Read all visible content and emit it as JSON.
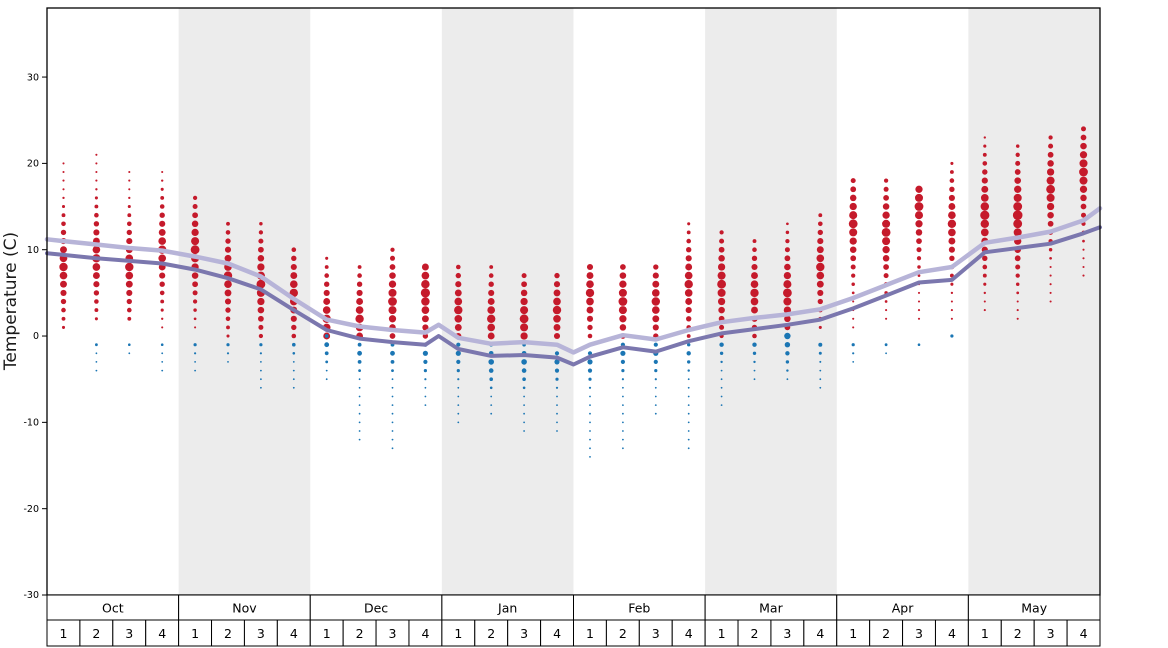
{
  "chart_data": {
    "type": "scatter",
    "title": "",
    "xlabel": "",
    "ylabel": "Temperature (C)",
    "ylim": [
      -30,
      38
    ],
    "yticks": [
      30,
      20,
      10,
      0,
      -10,
      -20,
      -30
    ],
    "grid": false,
    "legend": "none",
    "months": [
      "Oct",
      "Nov",
      "Dec",
      "Jan",
      "Feb",
      "Mar",
      "Apr",
      "May"
    ],
    "week_labels": [
      "1",
      "2",
      "3",
      "4"
    ],
    "shaded_month_indices": [
      1,
      3,
      5,
      7
    ],
    "colors": {
      "max_dots": "#c51a2b",
      "min_dots": "#1b76b4",
      "avg_max_line": "#b7b4d8",
      "avg_min_line": "#7b77ae",
      "band": "#ececec",
      "axis": "#000000",
      "cell_fill": "#ffffff"
    },
    "series": [
      {
        "name": "average-max-temperature",
        "color": "#b7b4d8",
        "width": 4.5,
        "points": [
          [
            -0.5,
            11.2
          ],
          [
            0,
            11.0
          ],
          [
            1,
            10.6
          ],
          [
            2,
            10.2
          ],
          [
            3,
            9.9
          ],
          [
            4,
            9.2
          ],
          [
            5,
            8.4
          ],
          [
            6,
            6.9
          ],
          [
            7,
            4.3
          ],
          [
            8,
            1.9
          ],
          [
            9,
            1.1
          ],
          [
            10,
            0.7
          ],
          [
            11,
            0.4
          ],
          [
            11.4,
            1.3
          ],
          [
            12,
            -0.2
          ],
          [
            13,
            -0.9
          ],
          [
            14,
            -0.7
          ],
          [
            15,
            -1.0
          ],
          [
            15.5,
            -1.9
          ],
          [
            16,
            -1.0
          ],
          [
            17,
            0.1
          ],
          [
            18,
            -0.4
          ],
          [
            19,
            0.7
          ],
          [
            20,
            1.6
          ],
          [
            21,
            2.1
          ],
          [
            22,
            2.5
          ],
          [
            23,
            3.1
          ],
          [
            24,
            4.4
          ],
          [
            25,
            5.9
          ],
          [
            26,
            7.4
          ],
          [
            27,
            8.0
          ],
          [
            28,
            10.8
          ],
          [
            29,
            11.4
          ],
          [
            30,
            12.1
          ],
          [
            31,
            13.4
          ],
          [
            31.5,
            14.8
          ]
        ]
      },
      {
        "name": "average-min-temperature",
        "color": "#7b77ae",
        "width": 4,
        "points": [
          [
            -0.5,
            9.6
          ],
          [
            0,
            9.4
          ],
          [
            1,
            9.0
          ],
          [
            2,
            8.7
          ],
          [
            3,
            8.4
          ],
          [
            4,
            7.7
          ],
          [
            5,
            6.7
          ],
          [
            6,
            5.4
          ],
          [
            7,
            3.0
          ],
          [
            8,
            0.7
          ],
          [
            9,
            -0.3
          ],
          [
            10,
            -0.7
          ],
          [
            11,
            -1.0
          ],
          [
            11.4,
            0.0
          ],
          [
            12,
            -1.5
          ],
          [
            13,
            -2.3
          ],
          [
            14,
            -2.2
          ],
          [
            15,
            -2.5
          ],
          [
            15.5,
            -3.3
          ],
          [
            16,
            -2.4
          ],
          [
            17,
            -1.3
          ],
          [
            18,
            -1.8
          ],
          [
            19,
            -0.6
          ],
          [
            20,
            0.3
          ],
          [
            21,
            0.8
          ],
          [
            22,
            1.3
          ],
          [
            23,
            1.9
          ],
          [
            24,
            3.2
          ],
          [
            25,
            4.7
          ],
          [
            26,
            6.2
          ],
          [
            27,
            6.5
          ],
          [
            28,
            9.7
          ],
          [
            29,
            10.2
          ],
          [
            30,
            10.7
          ],
          [
            31,
            11.9
          ],
          [
            31.5,
            12.6
          ]
        ]
      }
    ],
    "weekly_dots": [
      {
        "month": "Oct",
        "week": "1",
        "max": {
          "lo": 1,
          "hi": 20,
          "mode": 8,
          "rmax": 4.2
        },
        "min": null
      },
      {
        "month": "Oct",
        "week": "2",
        "max": {
          "lo": 2,
          "hi": 21,
          "mode": 9,
          "rmax": 4.2
        },
        "min": {
          "lo": -4,
          "hi": -1,
          "mode": -1,
          "rmax": 1.4
        }
      },
      {
        "month": "Oct",
        "week": "3",
        "max": {
          "lo": 2,
          "hi": 19,
          "mode": 8,
          "rmax": 4.2
        },
        "min": {
          "lo": -2,
          "hi": -1,
          "mode": -1,
          "rmax": 1.3
        }
      },
      {
        "month": "Oct",
        "week": "4",
        "max": {
          "lo": 1,
          "hi": 19,
          "mode": 10,
          "rmax": 4.2
        },
        "min": {
          "lo": -4,
          "hi": -1,
          "mode": -1,
          "rmax": 1.3
        }
      },
      {
        "month": "Nov",
        "week": "1",
        "max": {
          "lo": 1,
          "hi": 16,
          "mode": 10,
          "rmax": 4.4
        },
        "min": {
          "lo": -4,
          "hi": -1,
          "mode": -1,
          "rmax": 1.6
        }
      },
      {
        "month": "Nov",
        "week": "2",
        "max": {
          "lo": 0,
          "hi": 13,
          "mode": 7,
          "rmax": 4.2
        },
        "min": {
          "lo": -3,
          "hi": -1,
          "mode": -1,
          "rmax": 1.6
        }
      },
      {
        "month": "Nov",
        "week": "3",
        "max": {
          "lo": 0,
          "hi": 13,
          "mode": 6,
          "rmax": 4.4
        },
        "min": {
          "lo": -6,
          "hi": -1,
          "mode": -1,
          "rmax": 1.6
        }
      },
      {
        "month": "Nov",
        "week": "4",
        "max": {
          "lo": 0,
          "hi": 10,
          "mode": 5,
          "rmax": 4.2
        },
        "min": {
          "lo": -6,
          "hi": -1,
          "mode": -1,
          "rmax": 1.8
        }
      },
      {
        "month": "Dec",
        "week": "1",
        "max": {
          "lo": 0,
          "hi": 9,
          "mode": 2,
          "rmax": 4.2
        },
        "min": {
          "lo": -5,
          "hi": 0,
          "mode": -1,
          "rmax": 2.4
        }
      },
      {
        "month": "Dec",
        "week": "2",
        "max": {
          "lo": 0,
          "hi": 8,
          "mode": 2,
          "rmax": 4.2
        },
        "min": {
          "lo": -12,
          "hi": -1,
          "mode": -2,
          "rmax": 2.4
        }
      },
      {
        "month": "Dec",
        "week": "3",
        "max": {
          "lo": 0,
          "hi": 10,
          "mode": 4,
          "rmax": 4.4
        },
        "min": {
          "lo": -13,
          "hi": -1,
          "mode": -2,
          "rmax": 2.4
        }
      },
      {
        "month": "Dec",
        "week": "4",
        "max": {
          "lo": 0,
          "hi": 8,
          "mode": 5,
          "rmax": 4.6
        },
        "min": {
          "lo": -8,
          "hi": -1,
          "mode": -2,
          "rmax": 2.6
        }
      },
      {
        "month": "Jan",
        "week": "1",
        "max": {
          "lo": 0,
          "hi": 8,
          "mode": 3,
          "rmax": 4.2
        },
        "min": {
          "lo": -10,
          "hi": -1,
          "mode": -2,
          "rmax": 2.6
        }
      },
      {
        "month": "Jan",
        "week": "2",
        "max": {
          "lo": 0,
          "hi": 8,
          "mode": 2,
          "rmax": 4.2
        },
        "min": {
          "lo": -9,
          "hi": -1,
          "mode": -3,
          "rmax": 2.8
        }
      },
      {
        "month": "Jan",
        "week": "3",
        "max": {
          "lo": 0,
          "hi": 7,
          "mode": 2,
          "rmax": 4.4
        },
        "min": {
          "lo": -11,
          "hi": -1,
          "mode": -3,
          "rmax": 2.8
        }
      },
      {
        "month": "Jan",
        "week": "4",
        "max": {
          "lo": 0,
          "hi": 7,
          "mode": 3,
          "rmax": 4.2
        },
        "min": {
          "lo": -11,
          "hi": -1,
          "mode": -3,
          "rmax": 2.6
        }
      },
      {
        "month": "Feb",
        "week": "1",
        "max": {
          "lo": 0,
          "hi": 8,
          "mode": 5,
          "rmax": 4.2
        },
        "min": {
          "lo": -14,
          "hi": -1,
          "mode": -3,
          "rmax": 2.6
        }
      },
      {
        "month": "Feb",
        "week": "2",
        "max": {
          "lo": 0,
          "hi": 8,
          "mode": 4,
          "rmax": 4.4
        },
        "min": {
          "lo": -13,
          "hi": -1,
          "mode": -2,
          "rmax": 2.6
        }
      },
      {
        "month": "Feb",
        "week": "3",
        "max": {
          "lo": 0,
          "hi": 8,
          "mode": 4,
          "rmax": 4.2
        },
        "min": {
          "lo": -9,
          "hi": -1,
          "mode": -2,
          "rmax": 2.6
        }
      },
      {
        "month": "Feb",
        "week": "4",
        "max": {
          "lo": 0,
          "hi": 13,
          "mode": 6,
          "rmax": 4.2
        },
        "min": {
          "lo": -13,
          "hi": -1,
          "mode": -2,
          "rmax": 2.2
        }
      },
      {
        "month": "Mar",
        "week": "1",
        "max": {
          "lo": 0,
          "hi": 12,
          "mode": 6,
          "rmax": 4.4
        },
        "min": {
          "lo": -8,
          "hi": -1,
          "mode": -1,
          "rmax": 2.2
        }
      },
      {
        "month": "Mar",
        "week": "2",
        "max": {
          "lo": 0,
          "hi": 11,
          "mode": 5,
          "rmax": 4.2
        },
        "min": {
          "lo": -5,
          "hi": -1,
          "mode": -1,
          "rmax": 2.2
        }
      },
      {
        "month": "Mar",
        "week": "3",
        "max": {
          "lo": 1,
          "hi": 13,
          "mode": 5,
          "rmax": 4.4
        },
        "min": {
          "lo": -5,
          "hi": 0,
          "mode": 0,
          "rmax": 3.2
        }
      },
      {
        "month": "Mar",
        "week": "4",
        "max": {
          "lo": 1,
          "hi": 14,
          "mode": 8,
          "rmax": 4.2
        },
        "min": {
          "lo": -6,
          "hi": -1,
          "mode": -1,
          "rmax": 2.0
        }
      },
      {
        "month": "Apr",
        "week": "1",
        "max": {
          "lo": 1,
          "hi": 18,
          "mode": 13,
          "rmax": 4.4
        },
        "min": {
          "lo": -3,
          "hi": -1,
          "mode": -1,
          "rmax": 1.6
        }
      },
      {
        "month": "Apr",
        "week": "2",
        "max": {
          "lo": 2,
          "hi": 18,
          "mode": 12,
          "rmax": 4.4
        },
        "min": {
          "lo": -2,
          "hi": -1,
          "mode": -1,
          "rmax": 1.4
        }
      },
      {
        "month": "Apr",
        "week": "3",
        "max": {
          "lo": 2,
          "hi": 17,
          "mode": 15,
          "rmax": 4.4
        },
        "min": {
          "lo": -1,
          "hi": -1,
          "mode": -1,
          "rmax": 1.3
        }
      },
      {
        "month": "Apr",
        "week": "4",
        "max": {
          "lo": 2,
          "hi": 20,
          "mode": 13,
          "rmax": 4.2
        },
        "min": {
          "lo": 0,
          "hi": 0,
          "mode": 0,
          "rmax": 1.6
        }
      },
      {
        "month": "May",
        "week": "1",
        "max": {
          "lo": 3,
          "hi": 23,
          "mode": 14,
          "rmax": 4.6
        },
        "min": null
      },
      {
        "month": "May",
        "week": "2",
        "max": {
          "lo": 2,
          "hi": 22,
          "mode": 14,
          "rmax": 4.8
        },
        "min": null
      },
      {
        "month": "May",
        "week": "3",
        "max": {
          "lo": 4,
          "hi": 23,
          "mode": 17,
          "rmax": 4.4
        },
        "min": null
      },
      {
        "month": "May",
        "week": "4",
        "max": {
          "lo": 7,
          "hi": 24,
          "mode": 19,
          "rmax": 4.4
        },
        "min": null
      }
    ]
  }
}
